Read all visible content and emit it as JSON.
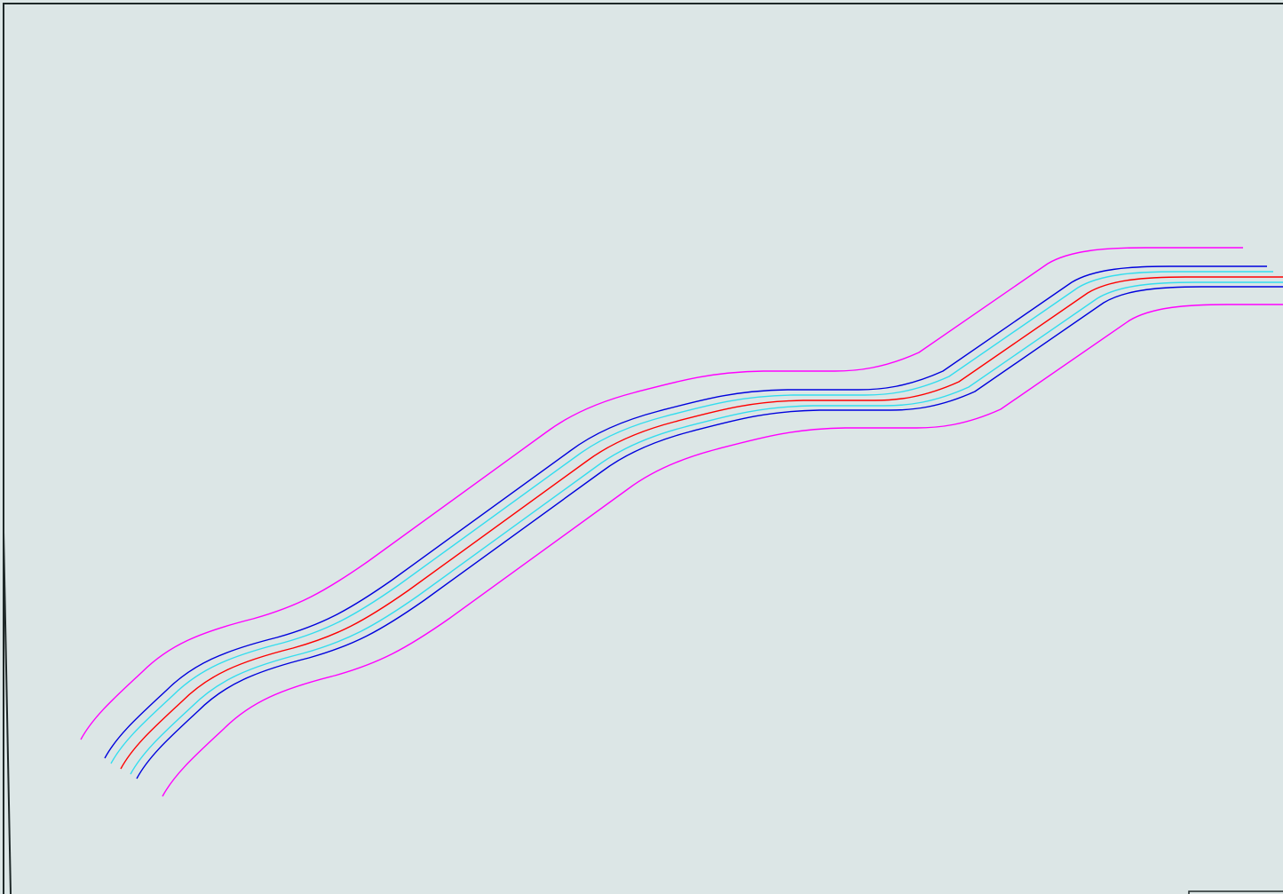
{
  "canvas": {
    "background": "#dce6e6",
    "frame_color": "#1e2828"
  },
  "road": {
    "lines": [
      {
        "role": "outer-boundary",
        "color": "#ff00ff"
      },
      {
        "role": "lane-edge",
        "color": "#0000dd"
      },
      {
        "role": "lane-inner",
        "color": "#33ddee"
      },
      {
        "role": "centerline",
        "color": "#ff0000"
      },
      {
        "role": "lane-inner",
        "color": "#33ddee"
      },
      {
        "role": "lane-edge",
        "color": "#0000dd"
      },
      {
        "role": "outer-boundary",
        "color": "#ff00ff"
      }
    ]
  }
}
